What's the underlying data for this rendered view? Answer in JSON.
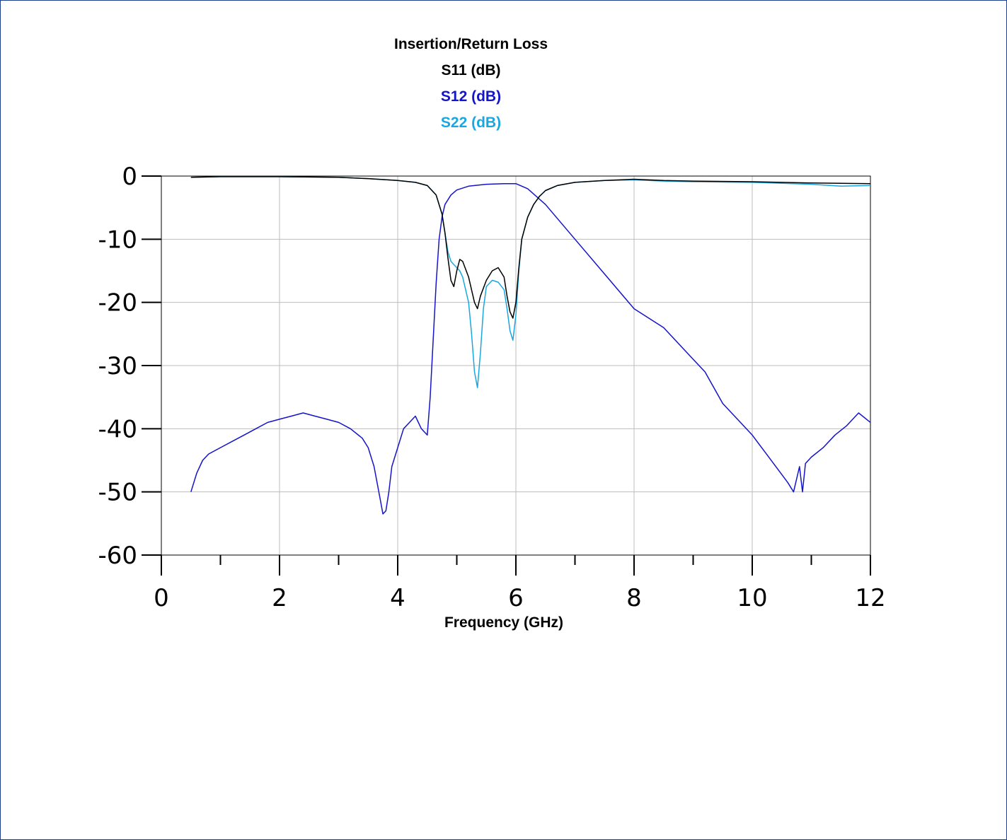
{
  "chart_data": {
    "type": "line",
    "title": "Insertion/Return Loss",
    "legend": [
      {
        "name": "S11 (dB)",
        "color": "#000000"
      },
      {
        "name": "S12 (dB)",
        "color": "#1414c8"
      },
      {
        "name": "S22 (dB)",
        "color": "#19a7e0"
      }
    ],
    "legend_placement": "top-center",
    "xlabel": "Frequency (GHz)",
    "ylabel": "",
    "xlim": [
      0,
      12
    ],
    "ylim": [
      -60,
      0
    ],
    "xticks": [
      0,
      2,
      4,
      6,
      8,
      10,
      12
    ],
    "yticks": [
      0,
      -10,
      -20,
      -30,
      -40,
      -50,
      -60
    ],
    "grid": true,
    "series": [
      {
        "name": "S11 (dB)",
        "color": "#000000",
        "x": [
          0.5,
          1.0,
          2.0,
          3.0,
          3.5,
          4.0,
          4.3,
          4.5,
          4.65,
          4.75,
          4.8,
          4.85,
          4.9,
          4.95,
          5.0,
          5.05,
          5.1,
          5.2,
          5.3,
          5.35,
          5.4,
          5.5,
          5.6,
          5.7,
          5.8,
          5.85,
          5.9,
          5.95,
          6.0,
          6.05,
          6.1,
          6.2,
          6.3,
          6.4,
          6.5,
          6.7,
          7.0,
          7.5,
          8.0,
          8.5,
          9.0,
          10.0,
          11.0,
          12.0
        ],
        "values": [
          -0.2,
          -0.1,
          -0.1,
          -0.2,
          -0.4,
          -0.7,
          -1.0,
          -1.5,
          -3.0,
          -6.0,
          -9.0,
          -13.0,
          -16.5,
          -17.5,
          -15.0,
          -13.2,
          -13.5,
          -16.0,
          -20.0,
          -21.0,
          -19.0,
          -16.5,
          -15.0,
          -14.5,
          -16.0,
          -19.0,
          -21.5,
          -22.5,
          -20.0,
          -14.5,
          -10.0,
          -6.5,
          -4.5,
          -3.2,
          -2.3,
          -1.5,
          -1.0,
          -0.7,
          -0.5,
          -0.7,
          -0.8,
          -0.9,
          -1.1,
          -1.2
        ]
      },
      {
        "name": "S12 (dB)",
        "color": "#1414c8",
        "x": [
          0.5,
          0.6,
          0.7,
          0.8,
          1.0,
          1.2,
          1.4,
          1.6,
          1.8,
          2.0,
          2.2,
          2.4,
          2.6,
          2.8,
          3.0,
          3.2,
          3.4,
          3.5,
          3.6,
          3.7,
          3.75,
          3.8,
          3.85,
          3.9,
          4.0,
          4.1,
          4.2,
          4.3,
          4.4,
          4.5,
          4.55,
          4.6,
          4.65,
          4.7,
          4.75,
          4.8,
          4.9,
          5.0,
          5.2,
          5.5,
          5.8,
          6.0,
          6.2,
          6.5,
          7.0,
          7.5,
          8.0,
          8.5,
          9.0,
          9.2,
          9.5,
          9.8,
          10.0,
          10.2,
          10.4,
          10.6,
          10.7,
          10.8,
          10.85,
          10.9,
          11.0,
          11.2,
          11.4,
          11.6,
          11.8,
          12.0
        ],
        "values": [
          -50.0,
          -47.0,
          -45.0,
          -44.0,
          -43.0,
          -42.0,
          -41.0,
          -40.0,
          -39.0,
          -38.5,
          -38.0,
          -37.5,
          -38.0,
          -38.5,
          -39.0,
          -40.0,
          -41.5,
          -43.0,
          -46.0,
          -51.0,
          -53.5,
          -53.0,
          -50.0,
          -46.0,
          -43.0,
          -40.0,
          -39.0,
          -38.0,
          -40.0,
          -41.0,
          -35.0,
          -26.0,
          -17.0,
          -10.0,
          -6.5,
          -4.5,
          -3.0,
          -2.2,
          -1.6,
          -1.3,
          -1.2,
          -1.2,
          -2.0,
          -4.5,
          -10.0,
          -15.5,
          -21.0,
          -24.0,
          -29.0,
          -31.0,
          -36.0,
          -39.0,
          -41.0,
          -43.5,
          -46.0,
          -48.5,
          -50.0,
          -46.0,
          -50.0,
          -45.5,
          -44.5,
          -43.0,
          -41.0,
          -39.5,
          -37.5,
          -39.0
        ]
      },
      {
        "name": "S22 (dB)",
        "color": "#19a7e0",
        "x": [
          0.5,
          1.0,
          2.0,
          3.0,
          3.5,
          4.0,
          4.3,
          4.5,
          4.65,
          4.75,
          4.8,
          4.85,
          4.9,
          4.95,
          5.0,
          5.05,
          5.1,
          5.2,
          5.25,
          5.3,
          5.35,
          5.4,
          5.45,
          5.5,
          5.6,
          5.7,
          5.8,
          5.85,
          5.9,
          5.95,
          6.0,
          6.05,
          6.1,
          6.2,
          6.3,
          6.4,
          6.5,
          6.7,
          7.0,
          7.5,
          8.0,
          8.5,
          9.0,
          10.0,
          11.0,
          11.5,
          12.0
        ],
        "values": [
          -0.2,
          -0.1,
          -0.1,
          -0.2,
          -0.4,
          -0.7,
          -1.0,
          -1.5,
          -3.0,
          -6.0,
          -9.0,
          -12.0,
          -13.5,
          -14.0,
          -14.5,
          -15.0,
          -16.0,
          -20.0,
          -25.0,
          -31.0,
          -33.5,
          -28.0,
          -21.0,
          -17.5,
          -16.5,
          -16.8,
          -18.0,
          -21.0,
          -24.5,
          -26.0,
          -22.0,
          -15.0,
          -10.0,
          -6.5,
          -4.5,
          -3.2,
          -2.3,
          -1.5,
          -1.0,
          -0.7,
          -0.6,
          -0.8,
          -0.9,
          -1.0,
          -1.3,
          -1.6,
          -1.5
        ]
      }
    ]
  }
}
